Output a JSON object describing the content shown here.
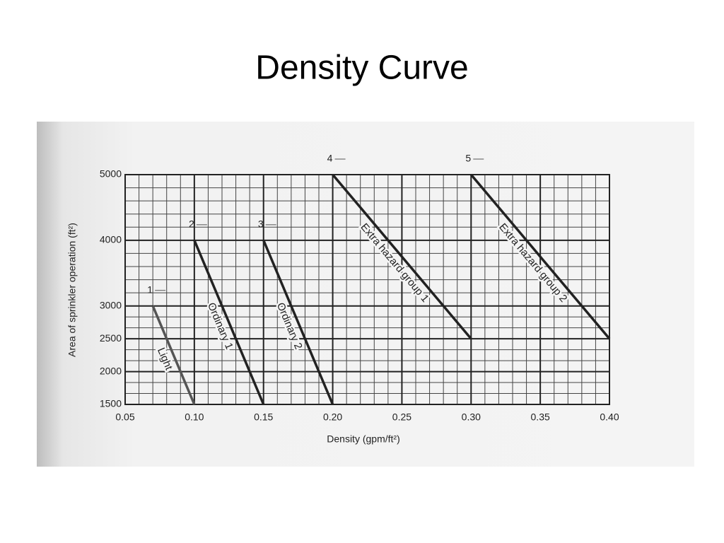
{
  "chart_data": {
    "type": "line",
    "title": "Density Curve",
    "xlabel": "Density (gpm/ft²)",
    "ylabel": "Area of sprinkler operation (ft²)",
    "xlim": [
      0.05,
      0.4
    ],
    "xticks": [
      {
        "value": 0.05,
        "label": "0.05"
      },
      {
        "value": 0.1,
        "label": "0.10"
      },
      {
        "value": 0.15,
        "label": "0.15"
      },
      {
        "value": 0.2,
        "label": "0.20"
      },
      {
        "value": 0.25,
        "label": "0.25"
      },
      {
        "value": 0.3,
        "label": "0.30"
      },
      {
        "value": 0.35,
        "label": "0.35"
      },
      {
        "value": 0.4,
        "label": "0.40"
      }
    ],
    "ylim": [
      1500,
      5000
    ],
    "yticks": [
      1500,
      2000,
      2500,
      3000,
      4000,
      5000
    ],
    "grid": true,
    "series": [
      {
        "name": "Light",
        "label": "1",
        "color": "#555555",
        "x": [
          0.07,
          0.1
        ],
        "values": [
          3000,
          1500
        ]
      },
      {
        "name": "Ordinary 1",
        "label": "2",
        "color": "#222222",
        "x": [
          0.1,
          0.15
        ],
        "values": [
          4000,
          1500
        ]
      },
      {
        "name": "Ordinary 2",
        "label": "3",
        "color": "#222222",
        "x": [
          0.15,
          0.2
        ],
        "values": [
          4000,
          1500
        ]
      },
      {
        "name": "Extra hazard group 1",
        "label": "4",
        "color": "#222222",
        "x": [
          0.2,
          0.3
        ],
        "values": [
          5000,
          2500
        ]
      },
      {
        "name": "Extra hazard group 2",
        "label": "5",
        "color": "#222222",
        "x": [
          0.3,
          0.4
        ],
        "values": [
          5000,
          2500
        ]
      }
    ]
  }
}
